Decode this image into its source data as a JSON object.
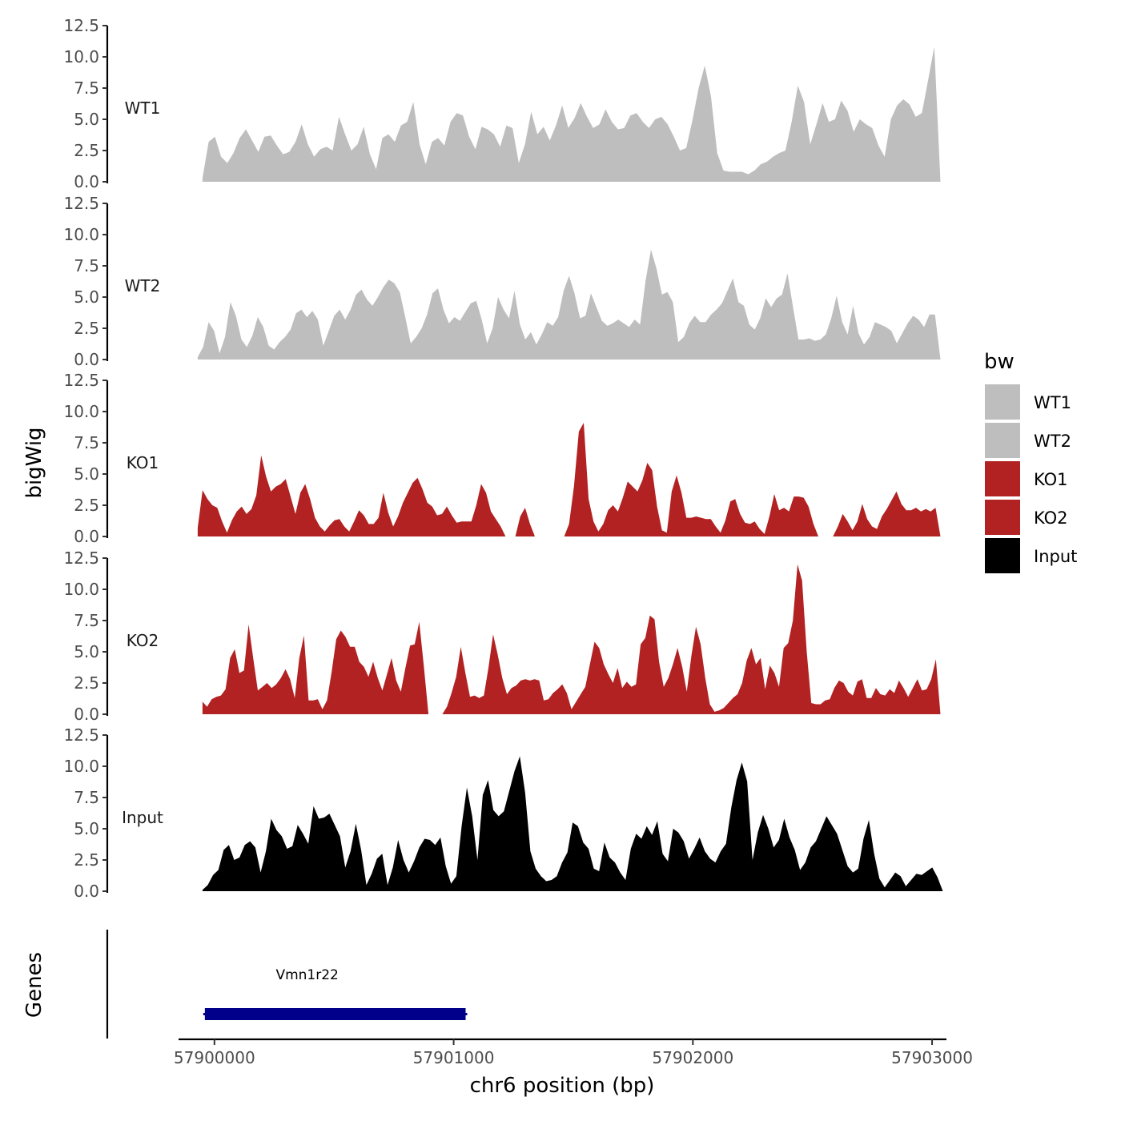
{
  "chart_data": {
    "type": "area",
    "y_axis_title": "bigWig",
    "x_axis_title": "chr6 position (bp)",
    "genes_axis_title": "Genes",
    "x_range": [
      57899850,
      57903060
    ],
    "x_ticks": [
      57900000,
      57901000,
      57902000,
      57903000
    ],
    "x_tick_labels": [
      "57900000",
      "57901000",
      "57902000",
      "57903000"
    ],
    "y_range": [
      0,
      12.5
    ],
    "y_ticks": [
      0,
      2.5,
      5,
      7.5,
      10,
      12.5
    ],
    "y_tick_labels": [
      "0.0",
      "2.5",
      "5.0",
      "7.5",
      "10.0",
      "12.5"
    ],
    "legend": {
      "title": "bw",
      "entries": [
        {
          "label": "WT1",
          "color": "#bebebe"
        },
        {
          "label": "WT2",
          "color": "#bebebe"
        },
        {
          "label": "KO1",
          "color": "#b22222"
        },
        {
          "label": "KO2",
          "color": "#b22222"
        },
        {
          "label": "Input",
          "color": "#000000"
        }
      ]
    },
    "tracks": [
      {
        "name": "WT1",
        "color": "#bebebe",
        "x_start": 57899950,
        "x_end": 57903035,
        "values": [
          0.3,
          3.2,
          3.6,
          2.0,
          1.5,
          2.3,
          3.5,
          4.2,
          3.3,
          2.4,
          3.6,
          3.7,
          2.9,
          2.2,
          2.4,
          3.2,
          4.6,
          3.0,
          2.0,
          2.6,
          2.8,
          2.5,
          5.2,
          3.8,
          2.5,
          3.0,
          4.4,
          2.2,
          1.0,
          3.5,
          3.8,
          3.2,
          4.5,
          4.8,
          6.4,
          3.0,
          1.4,
          3.2,
          3.5,
          2.9,
          4.8,
          5.5,
          5.3,
          3.6,
          2.6,
          4.4,
          4.2,
          3.8,
          2.8,
          4.5,
          4.3,
          1.5,
          3.0,
          5.6,
          3.8,
          4.4,
          3.3,
          4.5,
          6.1,
          4.3,
          5.1,
          6.3,
          5.2,
          4.3,
          4.6,
          5.8,
          4.8,
          4.2,
          4.3,
          5.3,
          5.5,
          4.8,
          4.3,
          5.0,
          5.2,
          4.6,
          3.6,
          2.5,
          2.7,
          4.9,
          7.5,
          9.3,
          6.8,
          2.3,
          0.9,
          0.8,
          0.8,
          0.8,
          0.6,
          0.9,
          1.4,
          1.6,
          2.0,
          2.3,
          2.5,
          4.8,
          7.7,
          6.4,
          3.0,
          4.6,
          6.3,
          4.8,
          5.0,
          6.5,
          5.7,
          4.0,
          5.0,
          4.6,
          4.3,
          2.9,
          2.0,
          5.0,
          6.1,
          6.6,
          6.2,
          5.2,
          5.5,
          8.1,
          10.8,
          0
        ]
      },
      {
        "name": "WT2",
        "color": "#bebebe",
        "x_start": 57899930,
        "x_end": 57903035,
        "values": [
          0.2,
          1.0,
          3.0,
          2.3,
          0.5,
          1.8,
          4.6,
          3.5,
          1.6,
          1.0,
          1.9,
          3.4,
          2.6,
          1.1,
          0.8,
          1.4,
          1.8,
          2.4,
          3.7,
          4.0,
          3.4,
          3.9,
          3.2,
          1.1,
          2.3,
          3.5,
          4.0,
          3.2,
          4.0,
          5.2,
          5.6,
          4.8,
          4.3,
          5.0,
          5.8,
          6.4,
          6.1,
          5.4,
          3.4,
          1.3,
          1.8,
          2.5,
          3.6,
          5.3,
          5.7,
          4.0,
          2.9,
          3.4,
          3.1,
          3.8,
          4.5,
          4.7,
          3.2,
          1.3,
          2.5,
          5.0,
          4.0,
          3.3,
          5.5,
          2.8,
          1.6,
          2.2,
          1.2,
          2.0,
          3.0,
          2.7,
          3.4,
          5.5,
          6.7,
          5.3,
          3.3,
          3.5,
          5.3,
          4.2,
          3.1,
          2.7,
          2.9,
          3.2,
          2.9,
          2.6,
          3.2,
          2.8,
          6.3,
          8.8,
          7.3,
          5.2,
          5.4,
          4.6,
          1.4,
          1.8,
          2.9,
          3.5,
          3.0,
          3.0,
          3.6,
          4.0,
          4.5,
          5.5,
          6.5,
          4.6,
          4.3,
          2.8,
          2.4,
          3.3,
          4.9,
          4.2,
          4.9,
          5.2,
          6.9,
          4.2,
          1.6,
          1.6,
          1.7,
          1.5,
          1.6,
          2.0,
          3.3,
          5.1,
          3.0,
          2.0,
          4.3,
          2.1,
          1.2,
          1.8,
          3.0,
          2.8,
          2.6,
          2.3,
          1.3,
          2.1,
          2.9,
          3.5,
          3.2,
          2.6,
          3.6,
          3.6,
          0
        ]
      },
      {
        "name": "KO1",
        "color": "#b22222",
        "x_start": 57899930,
        "x_end": 57903035,
        "values": [
          0.7,
          3.7,
          3.0,
          2.5,
          2.3,
          1.2,
          0.3,
          1.3,
          2.0,
          2.4,
          1.8,
          2.2,
          3.3,
          6.5,
          4.8,
          3.6,
          4.0,
          4.2,
          4.6,
          3.2,
          1.8,
          3.5,
          4.2,
          3.0,
          1.5,
          0.8,
          0.4,
          0.9,
          1.3,
          1.4,
          0.8,
          0.4,
          1.2,
          2.1,
          1.7,
          1.0,
          1.0,
          1.5,
          3.5,
          1.9,
          0.8,
          1.6,
          2.7,
          3.5,
          4.3,
          4.7,
          3.8,
          2.7,
          2.4,
          1.7,
          1.8,
          2.4,
          1.7,
          1.1,
          1.2,
          1.2,
          1.2,
          2.5,
          4.2,
          3.5,
          2.0,
          1.4,
          0.8,
          0,
          null,
          0,
          1.6,
          2.3,
          1.0,
          0,
          null,
          null,
          null,
          null,
          null,
          0,
          1.0,
          4.0,
          8.4,
          9.1,
          3.0,
          1.2,
          0.4,
          1.0,
          2.1,
          2.5,
          2.0,
          3.1,
          4.4,
          4.0,
          3.6,
          4.5,
          5.9,
          5.3,
          2.4,
          0.5,
          0.3,
          3.6,
          4.9,
          3.5,
          1.5,
          1.5,
          1.6,
          1.5,
          1.4,
          1.4,
          0.8,
          0.3,
          1.3,
          2.8,
          3.0,
          1.8,
          1.1,
          1.0,
          1.2,
          0.6,
          0.2,
          1.6,
          3.4,
          2.1,
          2.3,
          2.0,
          3.2,
          3.2,
          3.1,
          2.4,
          1.0,
          0,
          null,
          null,
          0,
          0.8,
          1.8,
          1.2,
          0.5,
          1.2,
          2.6,
          1.4,
          0.8,
          0.6,
          1.6,
          2.2,
          2.9,
          3.6,
          2.6,
          2.1,
          2.1,
          2.3,
          2.0,
          2.2,
          2.0,
          2.3,
          0
        ]
      },
      {
        "name": "KO2",
        "color": "#b22222",
        "x_start": 57899950,
        "x_end": 57903035,
        "values": [
          1.0,
          0.6,
          1.2,
          1.4,
          1.5,
          2.0,
          4.5,
          5.2,
          3.3,
          3.5,
          7.2,
          4.5,
          1.9,
          2.2,
          2.5,
          2.1,
          2.4,
          2.9,
          3.6,
          2.8,
          1.3,
          4.5,
          6.3,
          1.1,
          1.1,
          1.2,
          0.4,
          1.1,
          3.4,
          6.0,
          6.7,
          6.2,
          5.4,
          5.4,
          4.2,
          3.8,
          3.0,
          4.2,
          2.9,
          1.9,
          3.2,
          4.5,
          2.7,
          1.8,
          3.7,
          5.5,
          5.6,
          7.4,
          3.8,
          0,
          null,
          null,
          0,
          0.6,
          1.7,
          3.0,
          5.4,
          3.3,
          1.4,
          1.5,
          1.3,
          1.5,
          3.7,
          6.4,
          4.8,
          2.9,
          1.6,
          2.1,
          2.3,
          2.7,
          2.8,
          2.7,
          2.8,
          2.7,
          1.1,
          1.2,
          1.7,
          2.0,
          2.4,
          1.7,
          0.4,
          1.0,
          1.6,
          2.2,
          4.0,
          5.8,
          5.3,
          4.0,
          3.2,
          2.5,
          3.7,
          2.1,
          2.6,
          2.2,
          2.4,
          5.6,
          6.1,
          7.9,
          7.6,
          4.2,
          2.2,
          2.9,
          4.0,
          5.3,
          3.8,
          1.8,
          4.7,
          7.0,
          5.6,
          2.9,
          0.8,
          0.2,
          0.3,
          0.5,
          0.9,
          1.3,
          1.6,
          2.5,
          4.3,
          5.3,
          4.0,
          4.5,
          2.0,
          3.9,
          3.3,
          2.2,
          5.3,
          5.7,
          7.5,
          12.0,
          10.7,
          5.0,
          0.9,
          0.8,
          0.8,
          1.1,
          1.2,
          2.1,
          2.7,
          2.5,
          1.8,
          1.5,
          2.6,
          2.8,
          1.3,
          1.3,
          2.1,
          1.6,
          1.5,
          2.0,
          1.7,
          2.7,
          2.1,
          1.4,
          2.1,
          2.8,
          1.9,
          2.0,
          2.8,
          4.4,
          0
        ]
      },
      {
        "name": "Input",
        "color": "#000000",
        "x_start": 57899950,
        "x_end": 57903045,
        "values": [
          0.1,
          0.5,
          1.3,
          1.7,
          3.3,
          3.7,
          2.5,
          2.7,
          3.7,
          4.0,
          3.5,
          1.5,
          3.2,
          5.8,
          4.9,
          4.4,
          3.4,
          3.6,
          5.3,
          4.6,
          3.8,
          6.8,
          5.8,
          5.9,
          6.2,
          5.3,
          4.4,
          1.9,
          3.2,
          5.4,
          3.3,
          0.5,
          1.4,
          2.6,
          3.0,
          0.5,
          1.9,
          4.1,
          2.5,
          1.5,
          2.4,
          3.5,
          4.2,
          4.1,
          3.7,
          4.3,
          2.0,
          0.6,
          1.2,
          5.2,
          8.3,
          6.0,
          2.5,
          7.7,
          8.9,
          6.5,
          6.0,
          6.4,
          8.0,
          9.6,
          10.8,
          7.9,
          3.2,
          1.8,
          1.2,
          0.8,
          0.9,
          1.2,
          2.3,
          3.1,
          5.5,
          5.2,
          3.9,
          3.4,
          1.8,
          1.6,
          3.9,
          2.7,
          2.3,
          1.5,
          0.9,
          3.4,
          4.6,
          4.2,
          5.2,
          4.5,
          5.6,
          3.0,
          2.4,
          5.0,
          4.7,
          4.0,
          2.6,
          3.4,
          4.3,
          3.2,
          2.6,
          2.3,
          3.2,
          3.8,
          6.7,
          8.9,
          10.3,
          8.8,
          2.5,
          4.7,
          6.1,
          5.0,
          3.5,
          4.1,
          5.8,
          4.3,
          3.3,
          1.7,
          2.3,
          3.5,
          4.0,
          5.0,
          6.0,
          5.3,
          4.6,
          3.3,
          2.0,
          1.5,
          1.8,
          4.2,
          5.7,
          3.0,
          1.0,
          0.3,
          0.9,
          1.5,
          1.2,
          0.4,
          0.9,
          1.4,
          1.3,
          1.6,
          1.9,
          1.1,
          0
        ]
      }
    ],
    "genes": [
      {
        "name": "Vmn1r22",
        "start": 57899960,
        "end": 57901050,
        "color": "#00008b"
      }
    ]
  }
}
